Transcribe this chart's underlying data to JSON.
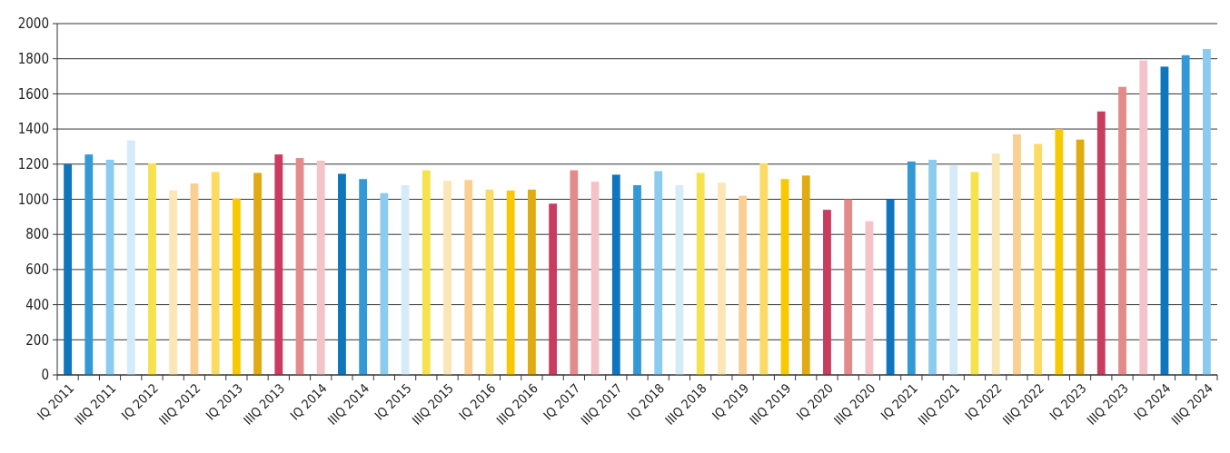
{
  "chart_data": {
    "type": "bar",
    "categories": [
      "IQ 2011",
      null,
      "IIIQ 2011",
      null,
      "IQ 2012",
      null,
      "IIIQ 2012",
      null,
      "IQ 2013",
      null,
      "IIIQ 2013",
      null,
      "IQ 2014",
      null,
      "IIIQ 2014",
      null,
      "IQ 2015",
      null,
      "IIIQ 2015",
      null,
      "IQ 2016",
      null,
      "IIIQ 2016",
      null,
      "IQ 2017",
      null,
      "IIIQ 2017",
      null,
      "IQ 2018",
      null,
      "IIIQ 2018",
      null,
      "IQ 2019",
      null,
      "IIIQ 2019",
      null,
      "IQ 2020",
      null,
      "IIIQ 2020",
      null,
      "IQ 2021",
      null,
      "IIIQ 2021",
      null,
      "IQ 2022",
      null,
      "IIIQ 2022",
      null,
      "IQ 2023",
      null,
      "IIIQ 2023",
      null,
      "IQ 2024",
      null,
      "IIIQ 2024"
    ],
    "values": [
      1200,
      1255,
      1225,
      1335,
      1205,
      1050,
      1090,
      1155,
      1005,
      1150,
      1255,
      1235,
      1220,
      1145,
      1115,
      1035,
      1080,
      1165,
      1105,
      1110,
      1055,
      1050,
      1055,
      975,
      1165,
      1100,
      1140,
      1080,
      1160,
      1080,
      1150,
      1095,
      1020,
      1205,
      1115,
      1135,
      940,
      1000,
      875,
      1000,
      1215,
      1225,
      1195,
      1155,
      1260,
      1370,
      1315,
      1400,
      1340,
      1500,
      1640,
      1790,
      1755,
      1820,
      1855
    ],
    "colors": [
      "#0f75bc",
      "#3399d6",
      "#8ccbf0",
      "#d6ebf9",
      "#f6e24e",
      "#fbe6b5",
      "#f9cf94",
      "#fbdb63",
      "#f8c800",
      "#e0aa12",
      "#c93c5f",
      "#e38b8a",
      "#f4c3c7",
      "#0f75bc",
      "#3399d6",
      "#8ccbf0",
      "#d6ebf9",
      "#f6e24e",
      "#fbe6b5",
      "#f9cf94",
      "#fbdb63",
      "#f8c800",
      "#e0aa12",
      "#c93c5f",
      "#e38b8a",
      "#f4c3c7",
      "#0f75bc",
      "#3399d6",
      "#8ccbf0",
      "#d6ebf9",
      "#f6e24e",
      "#fbe6b5",
      "#f9cf94",
      "#fbdb63",
      "#f8c800",
      "#e0aa12",
      "#c93c5f",
      "#e38b8a",
      "#f4c3c7",
      "#0f75bc",
      "#3399d6",
      "#8ccbf0",
      "#d6ebf9",
      "#f6e24e",
      "#fbe6b5",
      "#f9cf94",
      "#fbdb63",
      "#f8c800",
      "#e0aa12",
      "#c93c5f",
      "#e38b8a",
      "#f4c3c7",
      "#0f75bc",
      "#3399d6",
      "#8ccbf0"
    ],
    "ylim": [
      0,
      2000
    ],
    "yticks": [
      0,
      200,
      400,
      600,
      800,
      1000,
      1200,
      1400,
      1600,
      1800,
      2000
    ],
    "grid": "y"
  }
}
